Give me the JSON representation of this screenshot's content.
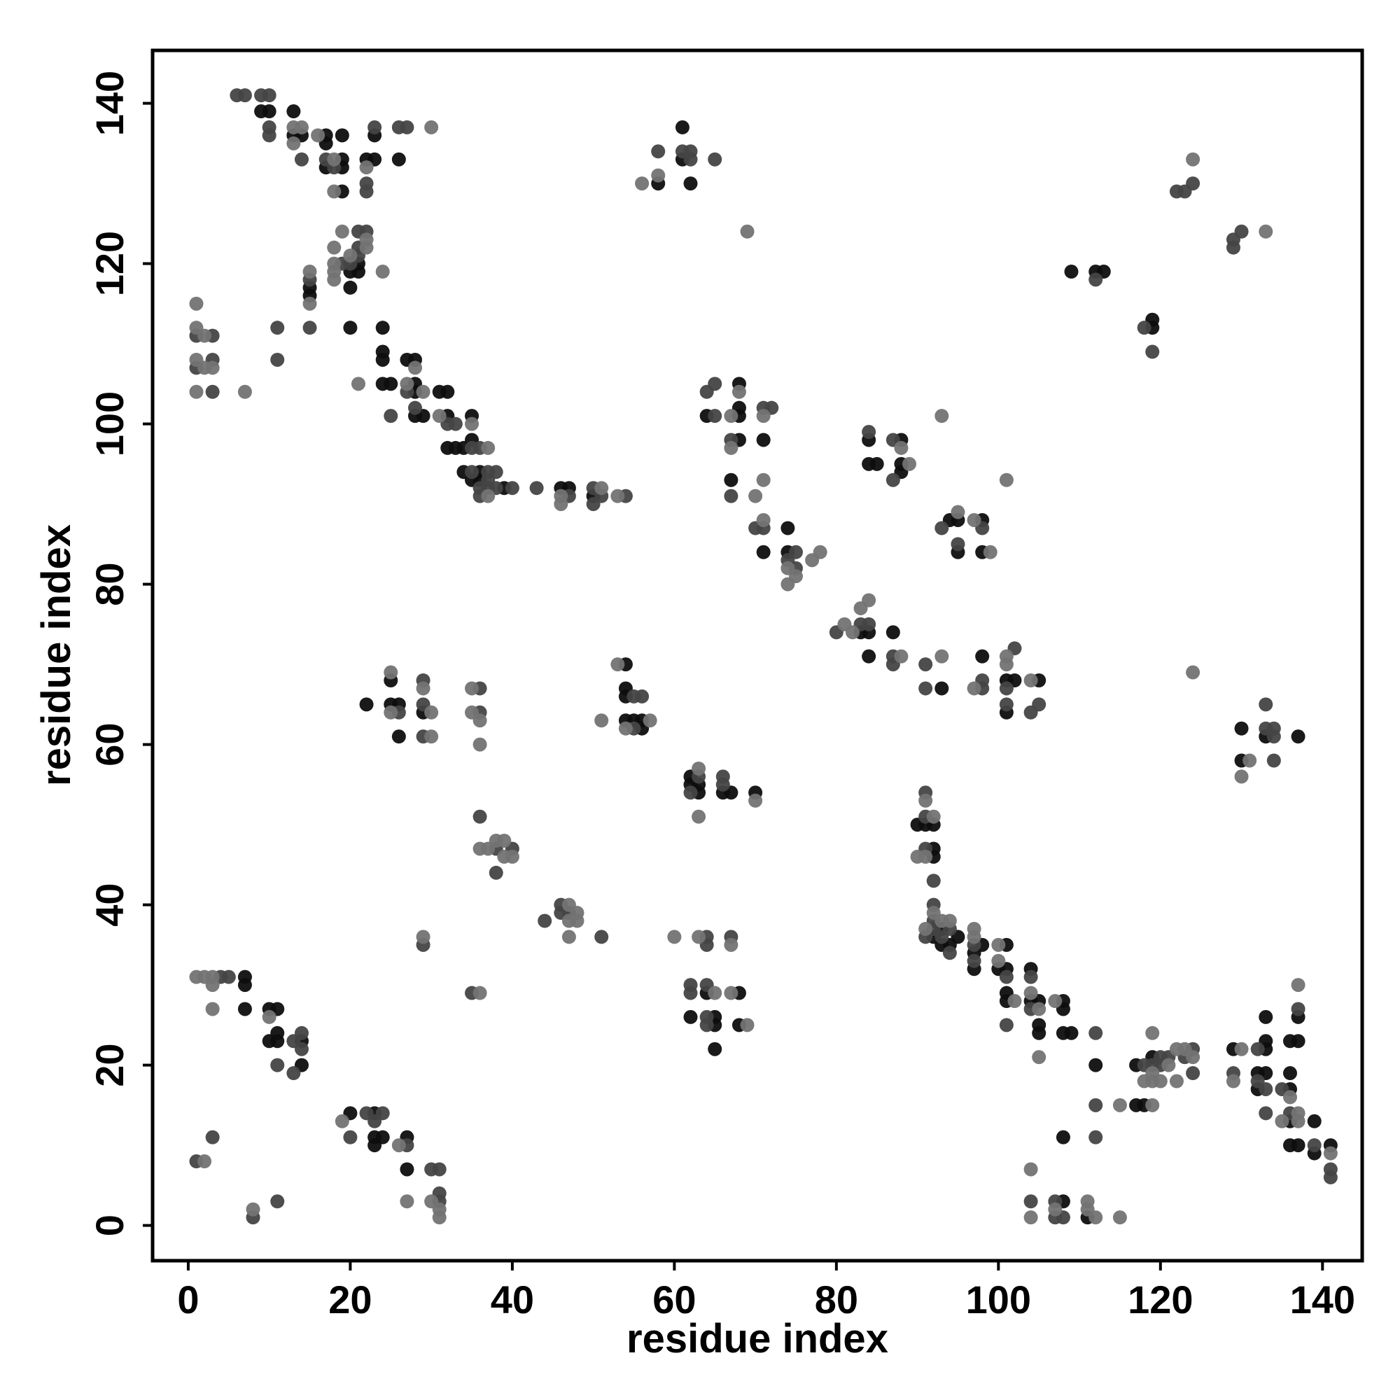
{
  "chart_data": {
    "type": "scatter",
    "xlabel": "residue index",
    "ylabel": "residue index",
    "xlim": [
      -4.4,
      144.9
    ],
    "ylim": [
      -4.4,
      146.6
    ],
    "xticks": [
      0,
      20,
      40,
      60,
      80,
      100,
      120,
      140
    ],
    "yticks": [
      0,
      20,
      40,
      60,
      80,
      100,
      120,
      140
    ],
    "series": [
      {
        "color": "#0e0e0e",
        "x": [
          9,
          10,
          13,
          13,
          14,
          17,
          17,
          17,
          19,
          19,
          19,
          19,
          22,
          23,
          23,
          26,
          21,
          21,
          20,
          20,
          15,
          15,
          20,
          24,
          24,
          24,
          24,
          25,
          27,
          28,
          28,
          28,
          28,
          29,
          31,
          32,
          32,
          32,
          33,
          34,
          35,
          35,
          34,
          35,
          36,
          36,
          39,
          46,
          47,
          50,
          58,
          61,
          61,
          62,
          109,
          112,
          113,
          119,
          119,
          64,
          68,
          68,
          68,
          68,
          71,
          67,
          74,
          71,
          74,
          84,
          84,
          85,
          88,
          88,
          88,
          94,
          95,
          95,
          98,
          98,
          83,
          84,
          84,
          87,
          93,
          98,
          101,
          102,
          101,
          105,
          22,
          25,
          25,
          26,
          26,
          29,
          54,
          54,
          54,
          54,
          55,
          56,
          56,
          62,
          62,
          63,
          63,
          66,
          67,
          70,
          130,
          130,
          133,
          137,
          90,
          91,
          92,
          92,
          92,
          92,
          93,
          93,
          94,
          95,
          98,
          97,
          97,
          101,
          101,
          100,
          101,
          101,
          104,
          104,
          105,
          105,
          105,
          108,
          108,
          108,
          109,
          112,
          117,
          117,
          118,
          119,
          129,
          132,
          133,
          132,
          133,
          133,
          133,
          136,
          136,
          136,
          137,
          136,
          136,
          137,
          137,
          139,
          139,
          141,
          108,
          108,
          111,
          7,
          7,
          7,
          10,
          11,
          10,
          11,
          11,
          14,
          14,
          20,
          23,
          23,
          24,
          23,
          27,
          27,
          62,
          64,
          65,
          65,
          65,
          68,
          68
        ],
        "values": [
          139,
          139,
          139,
          136,
          136,
          136,
          135,
          132,
          136,
          133,
          132,
          129,
          133,
          133,
          136,
          133,
          120,
          119,
          119,
          117,
          117,
          116,
          112,
          112,
          109,
          108,
          105,
          105,
          108,
          108,
          105,
          104,
          101,
          101,
          104,
          104,
          101,
          97,
          97,
          97,
          101,
          98,
          94,
          93,
          94,
          93,
          92,
          92,
          92,
          91,
          130,
          137,
          133,
          130,
          119,
          119,
          119,
          113,
          112,
          101,
          105,
          102,
          101,
          98,
          98,
          93,
          87,
          84,
          84,
          98,
          95,
          95,
          98,
          95,
          94,
          88,
          88,
          84,
          88,
          84,
          74,
          74,
          71,
          74,
          67,
          71,
          68,
          68,
          64,
          68,
          65,
          68,
          65,
          65,
          61,
          64,
          70,
          67,
          66,
          63,
          63,
          63,
          62,
          56,
          55,
          55,
          54,
          54,
          54,
          54,
          62,
          58,
          61,
          61,
          50,
          50,
          50,
          47,
          46,
          36,
          37,
          35,
          35,
          36,
          35,
          34,
          32,
          35,
          32,
          32,
          29,
          28,
          32,
          28,
          28,
          25,
          24,
          28,
          27,
          24,
          24,
          20,
          20,
          15,
          15,
          21,
          22,
          19,
          19,
          17,
          23,
          22,
          26,
          17,
          19,
          23,
          23,
          13,
          10,
          10,
          26,
          13,
          9,
          10,
          3,
          11,
          1,
          31,
          30,
          27,
          27,
          27,
          23,
          24,
          23,
          23,
          20,
          14,
          14,
          11,
          11,
          10,
          11,
          7,
          26,
          29,
          26,
          25,
          22,
          29,
          25
        ]
      },
      {
        "color": "#444444",
        "x": [
          6,
          7,
          9,
          10,
          10,
          10,
          14,
          17,
          18,
          22,
          22,
          23,
          26,
          27,
          19,
          20,
          21,
          21,
          22,
          21,
          15,
          15,
          11,
          11,
          1,
          3,
          1,
          3,
          3,
          25,
          27,
          28,
          32,
          33,
          35,
          36,
          35,
          37,
          37,
          38,
          36,
          36,
          37,
          38,
          40,
          43,
          47,
          50,
          51,
          50,
          54,
          58,
          61,
          62,
          62,
          65,
          112,
          118,
          119,
          122,
          123,
          124,
          129,
          129,
          130,
          64,
          65,
          65,
          67,
          71,
          72,
          67,
          70,
          71,
          75,
          74,
          75,
          84,
          87,
          87,
          93,
          95,
          98,
          80,
          83,
          84,
          87,
          87,
          91,
          91,
          98,
          98,
          102,
          101,
          101,
          105,
          104,
          26,
          29,
          29,
          29,
          36,
          36,
          55,
          56,
          55,
          63,
          62,
          66,
          66,
          133,
          133,
          134,
          134,
          134,
          91,
          91,
          91,
          92,
          92,
          92,
          92,
          91,
          93,
          94,
          94,
          97,
          97,
          101,
          101,
          104,
          104,
          112,
          112,
          112,
          118,
          119,
          120,
          120,
          121,
          123,
          124,
          124,
          129,
          132,
          132,
          133,
          133,
          135,
          136,
          137,
          139,
          141,
          141,
          104,
          107,
          107,
          108,
          4,
          5,
          13,
          14,
          14,
          11,
          13,
          1,
          3,
          8,
          11,
          20,
          22,
          24,
          23,
          27,
          30,
          31,
          31,
          31,
          29,
          35,
          36,
          38,
          38,
          40,
          44,
          46,
          46,
          47,
          51,
          64,
          64,
          67,
          62,
          62,
          64,
          64,
          64
        ],
        "values": [
          141,
          141,
          141,
          141,
          137,
          136,
          133,
          133,
          132,
          130,
          129,
          137,
          137,
          137,
          120,
          120,
          122,
          121,
          124,
          124,
          118,
          112,
          112,
          108,
          111,
          111,
          107,
          108,
          104,
          101,
          104,
          102,
          100,
          100,
          97,
          97,
          94,
          94,
          93,
          94,
          92,
          91,
          92,
          92,
          92,
          92,
          91,
          92,
          91,
          90,
          91,
          134,
          134,
          134,
          133,
          133,
          118,
          112,
          109,
          129,
          129,
          130,
          123,
          122,
          124,
          104,
          105,
          101,
          98,
          102,
          102,
          91,
          87,
          87,
          84,
          83,
          82,
          99,
          98,
          93,
          87,
          85,
          87,
          74,
          75,
          75,
          71,
          70,
          70,
          67,
          68,
          67,
          72,
          67,
          65,
          65,
          64,
          64,
          68,
          65,
          61,
          67,
          64,
          66,
          66,
          62,
          56,
          54,
          56,
          55,
          65,
          62,
          62,
          61,
          58,
          54,
          51,
          47,
          43,
          40,
          38,
          37,
          36,
          36,
          37,
          34,
          35,
          33,
          31,
          25,
          31,
          27,
          24,
          15,
          11,
          20,
          20,
          21,
          20,
          21,
          21,
          22,
          19,
          19,
          22,
          18,
          17,
          14,
          17,
          14,
          27,
          10,
          7,
          6,
          3,
          3,
          1,
          1,
          31,
          31,
          23,
          24,
          22,
          20,
          19,
          8,
          11,
          1,
          3,
          11,
          14,
          14,
          13,
          10,
          7,
          7,
          4,
          3,
          35,
          29,
          51,
          47,
          44,
          47,
          38,
          40,
          39,
          39,
          36,
          36,
          35,
          36,
          30,
          29,
          30,
          26,
          25
        ]
      },
      {
        "color": "#737373",
        "x": [
          13,
          13,
          14,
          16,
          18,
          18,
          22,
          30,
          18,
          19,
          18,
          18,
          18,
          20,
          22,
          22,
          24,
          15,
          15,
          1,
          1,
          2,
          1,
          2,
          3,
          1,
          7,
          21,
          28,
          27,
          29,
          31,
          35,
          37,
          37,
          46,
          46,
          51,
          53,
          56,
          58,
          69,
          124,
          133,
          67,
          68,
          67,
          71,
          71,
          70,
          71,
          74,
          74,
          75,
          77,
          78,
          88,
          89,
          93,
          95,
          97,
          99,
          101,
          81,
          82,
          83,
          84,
          88,
          93,
          97,
          101,
          101,
          104,
          124,
          25,
          25,
          29,
          30,
          30,
          35,
          35,
          36,
          36,
          53,
          54,
          57,
          51,
          63,
          63,
          70,
          131,
          130,
          91,
          92,
          90,
          91,
          92,
          91,
          93,
          94,
          97,
          97,
          100,
          100,
          102,
          104,
          105,
          105,
          107,
          115,
          118,
          119,
          119,
          119,
          119,
          120,
          121,
          122,
          122,
          123,
          124,
          129,
          130,
          136,
          135,
          137,
          137,
          137,
          141,
          104,
          104,
          107,
          111,
          112,
          115,
          111,
          1,
          2,
          3,
          3,
          3,
          10,
          2,
          8,
          19,
          26,
          27,
          30,
          31,
          31,
          29,
          36,
          36,
          37,
          38,
          39,
          39,
          40,
          47,
          48,
          47,
          48,
          47,
          60,
          63,
          67,
          65,
          67,
          69
        ],
        "values": [
          135,
          137,
          137,
          136,
          133,
          129,
          132,
          137,
          122,
          124,
          120,
          119,
          118,
          121,
          123,
          122,
          119,
          119,
          115,
          115,
          112,
          111,
          108,
          107,
          107,
          104,
          104,
          105,
          107,
          105,
          104,
          101,
          100,
          97,
          91,
          91,
          90,
          92,
          91,
          130,
          131,
          124,
          133,
          124,
          101,
          104,
          97,
          101,
          93,
          91,
          88,
          82,
          80,
          81,
          83,
          84,
          97,
          95,
          101,
          89,
          88,
          84,
          93,
          75,
          74,
          77,
          78,
          71,
          71,
          67,
          71,
          70,
          68,
          69,
          69,
          64,
          67,
          64,
          61,
          67,
          64,
          63,
          60,
          70,
          62,
          63,
          63,
          57,
          51,
          53,
          58,
          56,
          53,
          51,
          46,
          46,
          39,
          37,
          38,
          38,
          37,
          36,
          35,
          33,
          28,
          29,
          27,
          21,
          28,
          15,
          18,
          24,
          19,
          18,
          15,
          18,
          20,
          18,
          22,
          22,
          21,
          18,
          22,
          16,
          13,
          14,
          13,
          30,
          9,
          7,
          1,
          2,
          3,
          1,
          1,
          2,
          31,
          31,
          31,
          30,
          27,
          26,
          8,
          2,
          13,
          10,
          3,
          3,
          2,
          1,
          36,
          29,
          47,
          47,
          48,
          48,
          46,
          46,
          40,
          39,
          38,
          38,
          36,
          36,
          36,
          35,
          29,
          29,
          25
        ]
      }
    ]
  }
}
